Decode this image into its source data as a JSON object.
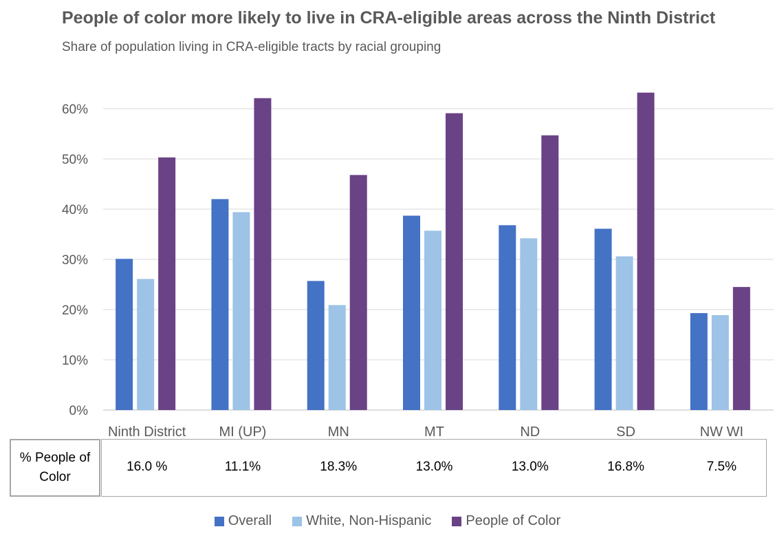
{
  "chart_data": {
    "type": "bar",
    "title": "People of color more likely to live in CRA-eligible areas across the Ninth District",
    "subtitle": "Share of population living in CRA-eligible tracts by racial grouping",
    "categories": [
      "Ninth District",
      "MI (UP)",
      "MN",
      "MT",
      "ND",
      "SD",
      "NW WI"
    ],
    "series": [
      {
        "name": "Overall",
        "color": "#4472c4",
        "values": [
          30.1,
          42.0,
          25.7,
          38.7,
          36.8,
          36.1,
          19.3
        ]
      },
      {
        "name": "White, Non-Hispanic",
        "color": "#9dc3e6",
        "values": [
          26.1,
          39.4,
          20.9,
          35.7,
          34.2,
          30.6,
          18.9
        ]
      },
      {
        "name": "People of Color",
        "color": "#6a4286",
        "values": [
          50.3,
          62.1,
          46.8,
          59.1,
          54.7,
          63.2,
          24.5
        ]
      }
    ],
    "yticks": [
      "0%",
      "10%",
      "20%",
      "30%",
      "40%",
      "50%",
      "60%"
    ],
    "ylim": [
      0,
      70
    ],
    "grid": true,
    "legend_position": "bottom"
  },
  "table": {
    "header": "% People of Color",
    "values": [
      "16.0 %",
      "11.1%",
      "18.3%",
      "13.0%",
      "13.0%",
      "16.8%",
      "7.5%"
    ]
  }
}
